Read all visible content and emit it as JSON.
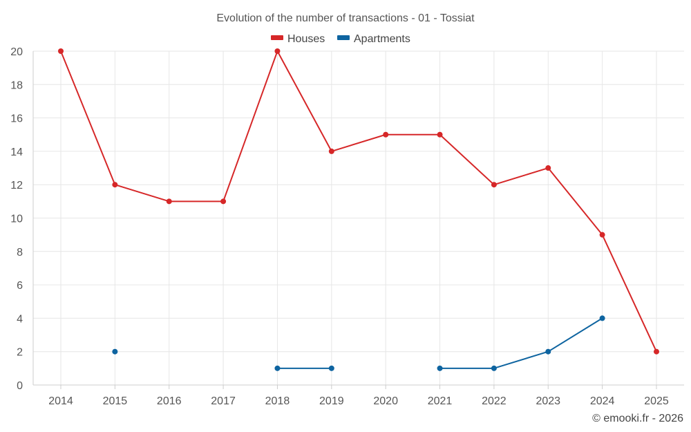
{
  "chart_data": {
    "type": "line",
    "title": "Evolution of the number of transactions - 01 - Tossiat",
    "xlabel": "",
    "ylabel": "",
    "categories": [
      "2014",
      "2015",
      "2016",
      "2017",
      "2018",
      "2019",
      "2020",
      "2021",
      "2022",
      "2023",
      "2024",
      "2025"
    ],
    "ylim": [
      0,
      20
    ],
    "yticks": [
      0,
      2,
      4,
      6,
      8,
      10,
      12,
      14,
      16,
      18,
      20
    ],
    "grid": true,
    "legend_position": "top-center",
    "series": [
      {
        "name": "Houses",
        "color": "#d62728",
        "values": [
          20,
          12,
          11,
          11,
          20,
          14,
          15,
          15,
          12,
          13,
          9,
          2
        ]
      },
      {
        "name": "Apartments",
        "color": "#0e64a0",
        "values": [
          null,
          2,
          null,
          null,
          1,
          1,
          null,
          1,
          1,
          2,
          4,
          null
        ]
      }
    ]
  },
  "footer": {
    "credit": "© emooki.fr - 2026"
  }
}
